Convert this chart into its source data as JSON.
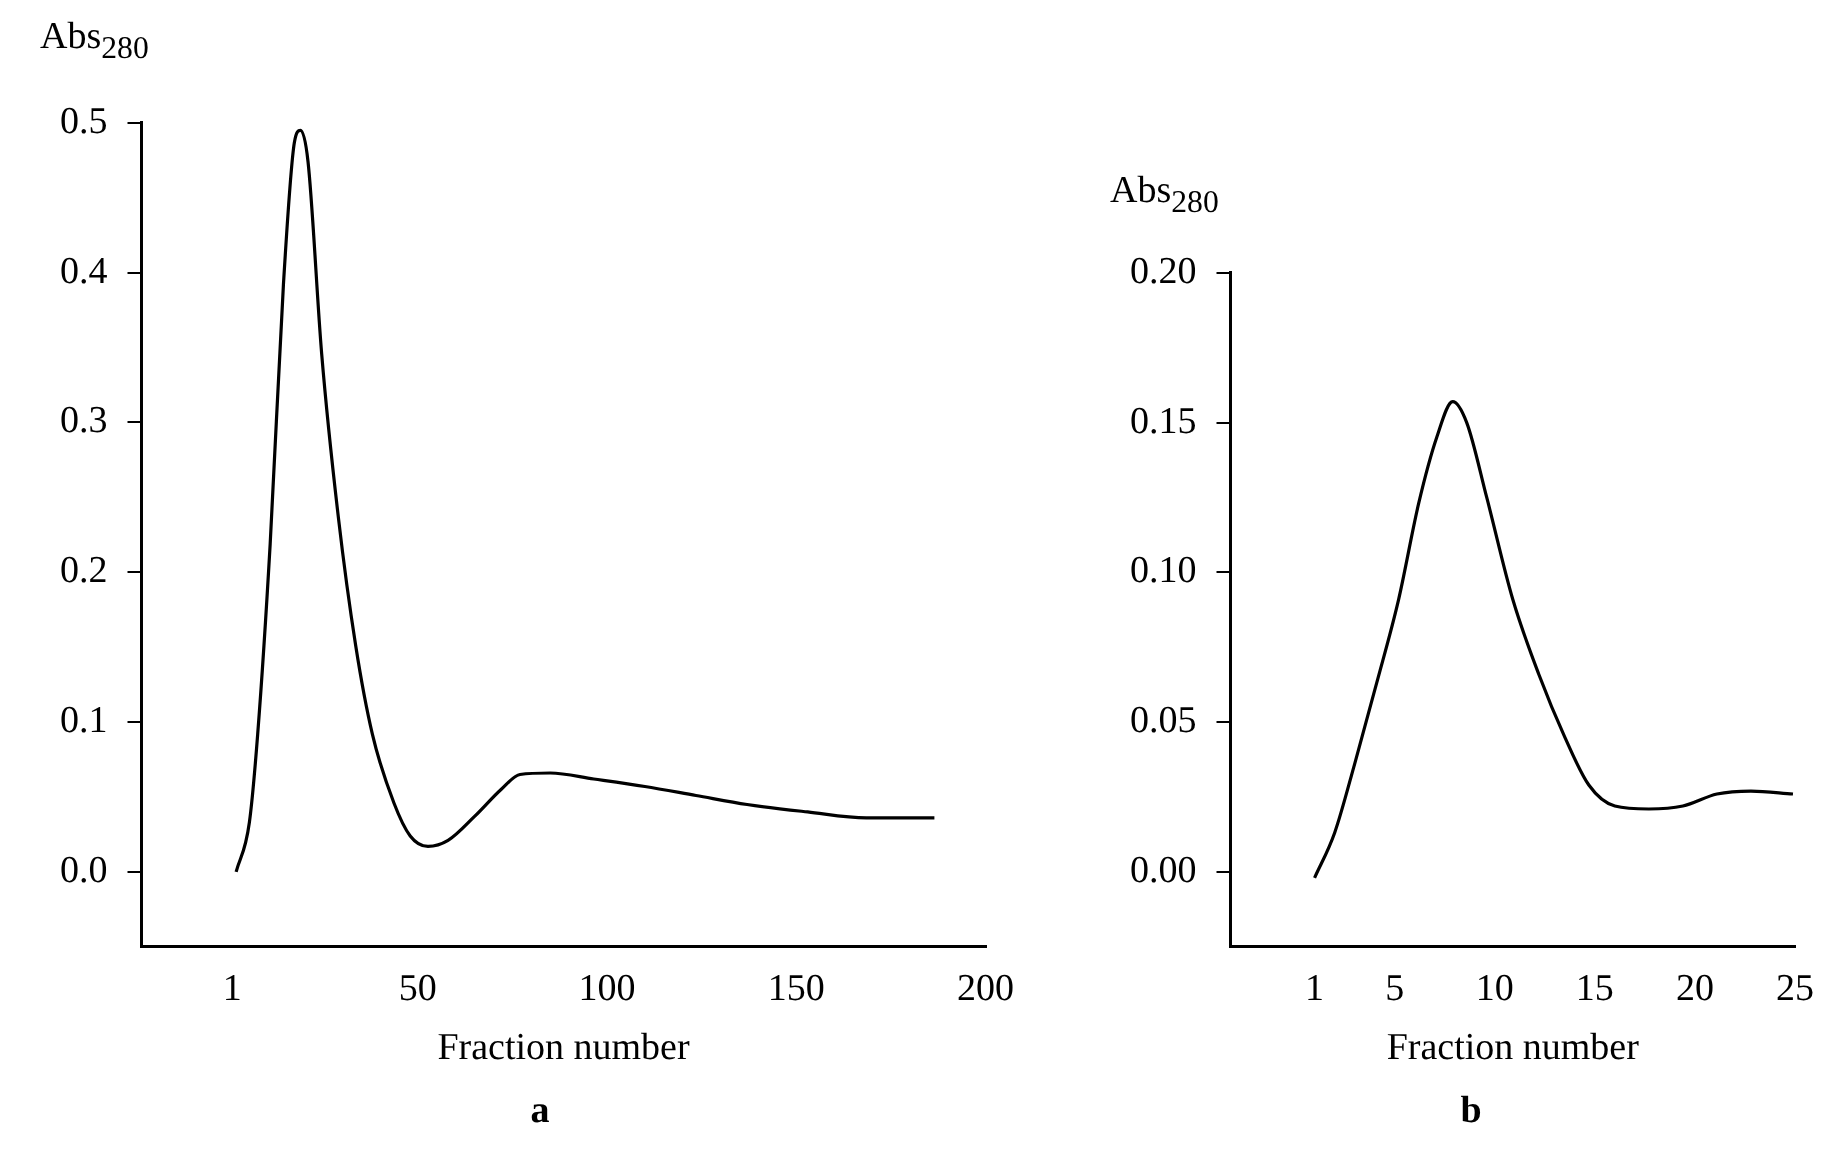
{
  "chart_data": [
    {
      "type": "line",
      "xlabel": "Fraction number",
      "ylabel": "Abs$_{280}$",
      "annotations": [
        "a"
      ],
      "xlim": [
        -23,
        200
      ],
      "xticks": [
        1,
        50,
        100,
        150,
        200
      ],
      "ylim": [
        -0.05,
        0.5
      ],
      "yticks": [
        {
          "value": 0,
          "label": "0.0"
        },
        0.1,
        0.2,
        0.3,
        0.4,
        0.5
      ],
      "series": [
        {
          "color": "#000000",
          "x": [
            2,
            5.5,
            7.7,
            11,
            14.5,
            17.4,
            19,
            21,
            24.6,
            29,
            33.6,
            38,
            43.7,
            48,
            52.7,
            58,
            65,
            72,
            77,
            85,
            96.5,
            110,
            123.5,
            137,
            153,
            168.5,
            177.5,
            186.5
          ],
          "values": [
            0,
            0.033,
            0.092,
            0.219,
            0.392,
            0.487,
            0.495,
            0.474,
            0.346,
            0.237,
            0.151,
            0.092,
            0.046,
            0.024,
            0.017,
            0.021,
            0.037,
            0.055,
            0.065,
            0.066,
            0.062,
            0.057,
            0.051,
            0.045,
            0.04,
            0.036,
            0.036,
            0.036
          ]
        }
      ]
    },
    {
      "type": "line",
      "xlabel": "Fraction number",
      "ylabel": "Abs$_{280}$",
      "annotations": [
        "b"
      ],
      "xlim": [
        -3.2,
        25
      ],
      "xticks": [
        1,
        5,
        10,
        15,
        20,
        25
      ],
      "ylim": [
        -0.025,
        0.2
      ],
      "yticks": [
        {
          "value": 0,
          "label": "0.00"
        },
        0.05,
        {
          "value": 0.1,
          "label": "0.10"
        },
        0.15,
        {
          "value": 0.2,
          "label": "0.20"
        }
      ],
      "series": [
        {
          "color": "#000000",
          "x": [
            1,
            2,
            3,
            4.1,
            5.2,
            6.2,
            7.1,
            7.9,
            8.6,
            9.6,
            10.9,
            12.2,
            13.5,
            14.7,
            16,
            17.7,
            19.4,
            21.1,
            22.8,
            24.9
          ],
          "values": [
            -0.002,
            0.013,
            0.036,
            0.063,
            0.091,
            0.123,
            0.145,
            0.157,
            0.15,
            0.125,
            0.091,
            0.066,
            0.045,
            0.029,
            0.022,
            0.021,
            0.022,
            0.026,
            0.027,
            0.026
          ]
        }
      ]
    }
  ]
}
